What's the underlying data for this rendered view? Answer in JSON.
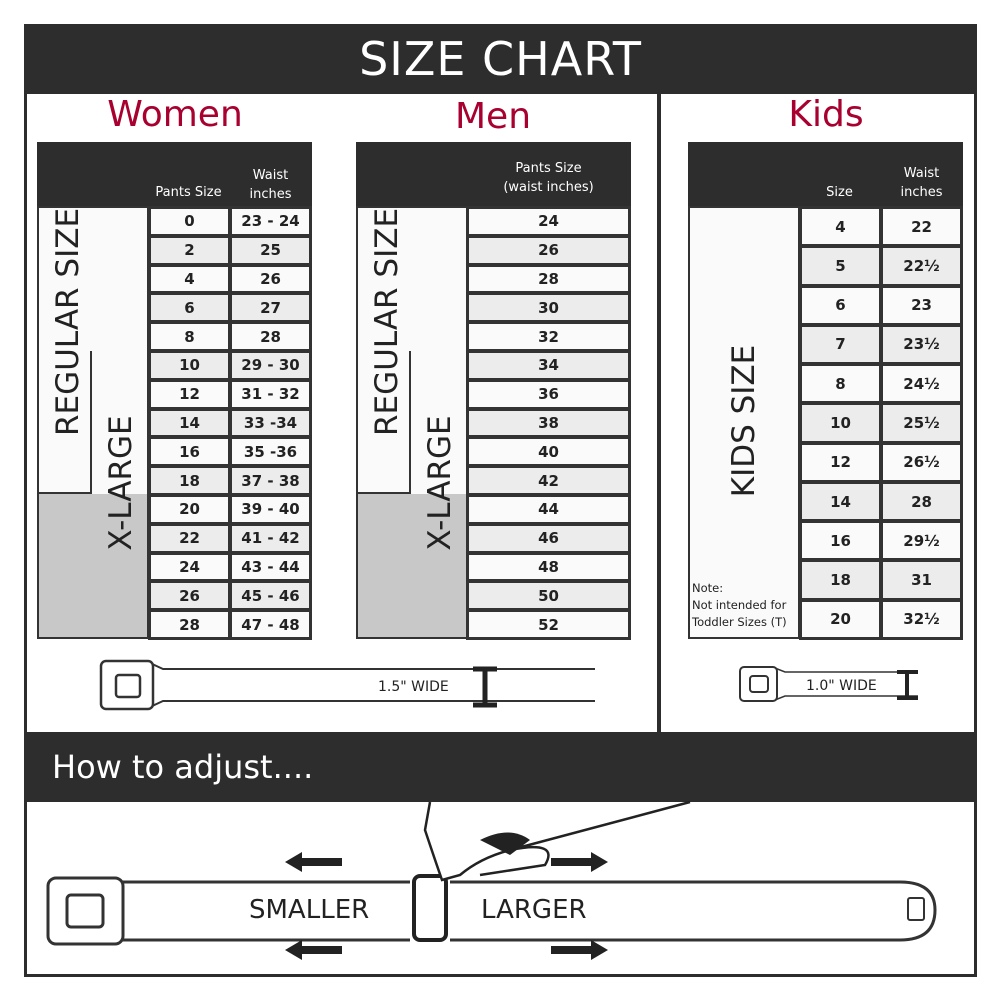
{
  "header": {
    "title": "SIZE CHART"
  },
  "women": {
    "title": "Women",
    "col1": "Pants Size",
    "col2_line1": "Waist",
    "col2_line2": "inches",
    "regular_label": "REGULAR SIZE",
    "xlarge_label": "X-LARGE",
    "rows": [
      [
        "0",
        "23 - 24"
      ],
      [
        "2",
        "25"
      ],
      [
        "4",
        "26"
      ],
      [
        "6",
        "27"
      ],
      [
        "8",
        "28"
      ],
      [
        "10",
        "29 - 30"
      ],
      [
        "12",
        "31 - 32"
      ],
      [
        "14",
        "33 -34"
      ],
      [
        "16",
        "35 -36"
      ],
      [
        "18",
        "37 - 38"
      ],
      [
        "20",
        "39 - 40"
      ],
      [
        "22",
        "41 - 42"
      ],
      [
        "24",
        "43 - 44"
      ],
      [
        "26",
        "45 - 46"
      ],
      [
        "28",
        "47 - 48"
      ]
    ],
    "belt_width": "1.5\" WIDE"
  },
  "men": {
    "title": "Men",
    "col1_line1": "Pants Size",
    "col1_line2": "(waist inches)",
    "regular_label": "REGULAR SIZE",
    "xlarge_label": "X-LARGE",
    "rows": [
      "24",
      "26",
      "28",
      "30",
      "32",
      "34",
      "36",
      "38",
      "40",
      "42",
      "44",
      "46",
      "48",
      "50",
      "52"
    ]
  },
  "kids": {
    "title": "Kids",
    "col1": "Size",
    "col2_line1": "Waist",
    "col2_line2": "inches",
    "label": "KIDS SIZE",
    "note_line1": "Note:",
    "note_line2": "Not intended for",
    "note_line3": "Toddler Sizes (T)",
    "rows": [
      [
        "4",
        "22"
      ],
      [
        "5",
        "22½"
      ],
      [
        "6",
        "23"
      ],
      [
        "7",
        "23½"
      ],
      [
        "8",
        "24½"
      ],
      [
        "10",
        "25½"
      ],
      [
        "12",
        "26½"
      ],
      [
        "14",
        "28"
      ],
      [
        "16",
        "29½"
      ],
      [
        "18",
        "31"
      ],
      [
        "20",
        "32½"
      ]
    ],
    "belt_width": "1.0\" WIDE"
  },
  "adjust": {
    "title": "How to adjust....",
    "smaller": "SMALLER",
    "larger": "LARGER"
  }
}
